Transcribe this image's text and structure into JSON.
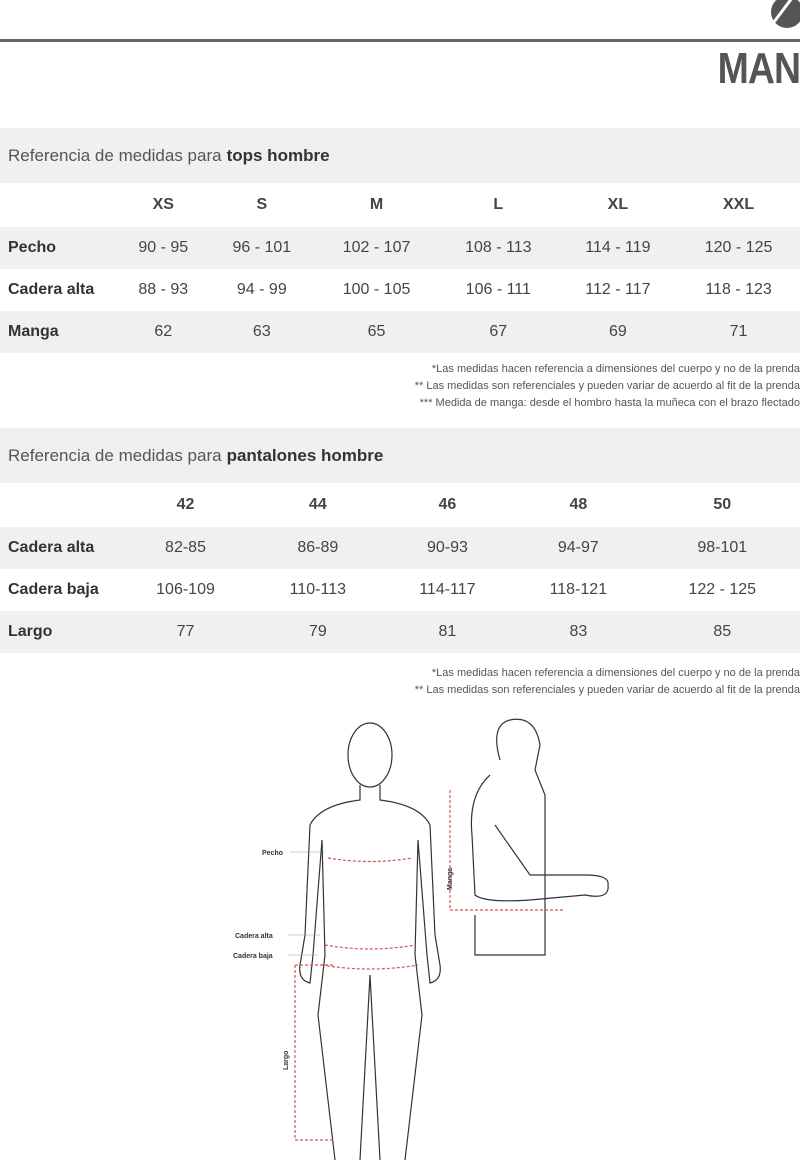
{
  "brand": {
    "name": "MAN",
    "logo": "mountain-circle-logo"
  },
  "tops": {
    "title_prefix": "Referencia de medidas para",
    "title_bold": "tops hombre",
    "sizes": [
      "XS",
      "S",
      "M",
      "L",
      "XL",
      "XXL"
    ],
    "rows": [
      {
        "label": "Pecho",
        "values": [
          "90 - 95",
          "96 - 101",
          "102 - 107",
          "108 - 113",
          "114 - 119",
          "120 - 125"
        ]
      },
      {
        "label": "Cadera alta",
        "values": [
          "88 - 93",
          "94 - 99",
          "100 - 105",
          "106 - 111",
          "112 - 117",
          "118 - 123"
        ]
      },
      {
        "label": "Manga",
        "values": [
          "62",
          "63",
          "65",
          "67",
          "69",
          "71"
        ]
      }
    ],
    "notes": [
      "*Las medidas hacen referencia a dimensiones del cuerpo y no de la prenda",
      "** Las medidas son referenciales y pueden variar de acuerdo al fit de la prenda",
      "*** Medida de manga: desde el hombro hasta la muñeca con el brazo flectado"
    ]
  },
  "pants": {
    "title_prefix": "Referencia de medidas para",
    "title_bold": "pantalones hombre",
    "sizes": [
      "42",
      "44",
      "46",
      "48",
      "50"
    ],
    "rows": [
      {
        "label": "Cadera alta",
        "values": [
          "82-85",
          "86-89",
          "90-93",
          "94-97",
          "98-101"
        ]
      },
      {
        "label": "Cadera baja",
        "values": [
          "106-109",
          "110-113",
          "114-117",
          "118-121",
          "122 - 125"
        ]
      },
      {
        "label": "Largo",
        "values": [
          "77",
          "79",
          "81",
          "83",
          "85"
        ]
      }
    ],
    "notes": [
      "*Las medidas hacen referencia a dimensiones del cuerpo y no de la prenda",
      "** Las medidas son referenciales y pueden variar de acuerdo al fit de la prenda"
    ]
  },
  "figure": {
    "labels": {
      "pecho": "Pecho",
      "cadera_alta": "Cadera alta",
      "cadera_baja": "Cadera baja",
      "largo": "Largo",
      "manga": "Manga"
    },
    "measure_color": "#d9534f"
  }
}
